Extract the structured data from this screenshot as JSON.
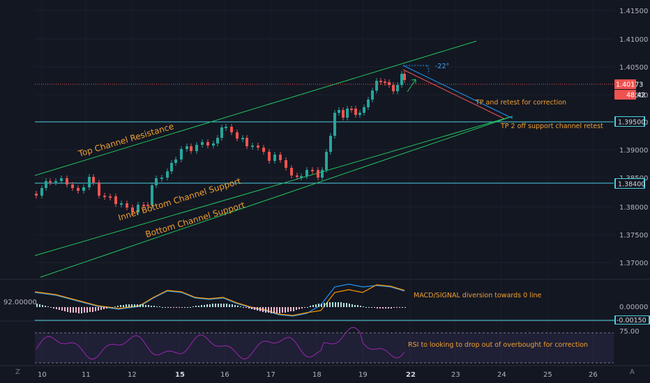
{
  "price_axis": [
    "1.41500",
    "1.41000",
    "1.40500",
    "1.40000",
    "1.39500",
    "1.39000",
    "1.38500",
    "1.38000",
    "1.37500",
    "1.37000"
  ],
  "price_tags": {
    "current": "1.40173",
    "countdown": "48:42",
    "level1": "1.39500",
    "level2": "1.38400"
  },
  "time_axis": [
    {
      "label": "10",
      "bold": false
    },
    {
      "label": "11",
      "bold": false
    },
    {
      "label": "12",
      "bold": false
    },
    {
      "label": "15",
      "bold": true
    },
    {
      "label": "16",
      "bold": false
    },
    {
      "label": "17",
      "bold": false
    },
    {
      "label": "18",
      "bold": false
    },
    {
      "label": "19",
      "bold": false
    },
    {
      "label": "22",
      "bold": true
    },
    {
      "label": "23",
      "bold": false
    },
    {
      "label": "24",
      "bold": false
    },
    {
      "label": "25",
      "bold": false
    },
    {
      "label": "26",
      "bold": false
    }
  ],
  "annotations": {
    "top_channel": "Top Channel Resistance",
    "inner_bottom": "Inner Bottom Channel Support",
    "bottom_channel": "Bottom Channel Support",
    "tp1": "TP and retest for correction",
    "tp2": "TP 2 off support channel retest",
    "angle": "-22°",
    "macd_note": "MACD/SIGNAL diversion towards 0 line",
    "rsi_note": "RSI to looking to drop out of overbought for correction"
  },
  "macd_panel": {
    "left_value": "92.00000",
    "right_zero": "0.00000",
    "right_tag": "-0.00150"
  },
  "rsi_panel": {
    "level": "75.00"
  },
  "corner_buttons": {
    "left": "Z",
    "right": "A"
  },
  "colors": {
    "up": "#26a69a",
    "down": "#ef5350",
    "channel": "#22c55e",
    "level": "#4dd0e1",
    "annotation": "#f0a030",
    "macd": "#2196f3",
    "signal": "#ff9800",
    "rsi": "#9c27b0"
  }
}
